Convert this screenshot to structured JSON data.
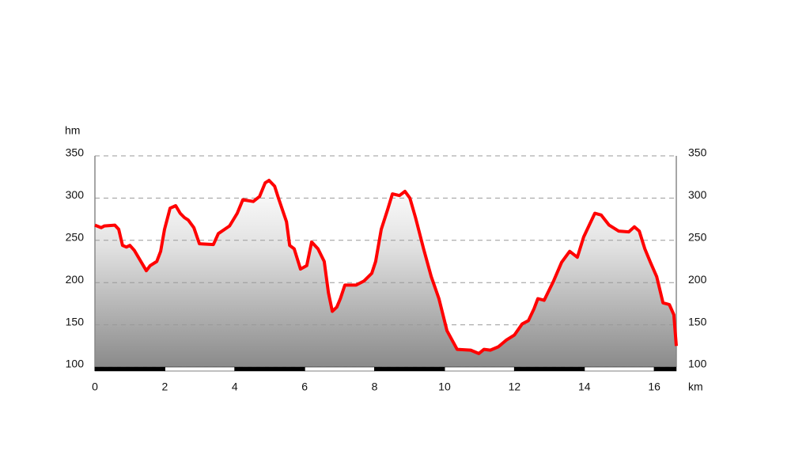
{
  "chart_data": {
    "type": "area",
    "y_label": "hm",
    "x_label": "km",
    "x": [
      0,
      0.18,
      0.27,
      0.57,
      0.68,
      0.79,
      0.9,
      1.0,
      1.13,
      1.47,
      1.58,
      1.77,
      1.88,
      1.99,
      2.15,
      2.31,
      2.44,
      2.56,
      2.67,
      2.83,
      2.99,
      3.39,
      3.53,
      3.85,
      4.07,
      4.23,
      4.53,
      4.71,
      4.87,
      4.98,
      5.14,
      5.25,
      5.48,
      5.57,
      5.7,
      5.88,
      6.06,
      6.2,
      6.38,
      6.56,
      6.68,
      6.79,
      6.92,
      7.02,
      7.15,
      7.47,
      7.7,
      7.92,
      8.03,
      8.19,
      8.37,
      8.51,
      8.71,
      8.87,
      9.01,
      9.17,
      9.4,
      9.62,
      9.84,
      10.07,
      10.36,
      10.75,
      10.98,
      11.13,
      11.31,
      11.54,
      11.77,
      12.0,
      12.22,
      12.4,
      12.56,
      12.67,
      12.85,
      13.12,
      13.35,
      13.58,
      13.8,
      13.98,
      14.14,
      14.3,
      14.48,
      14.71,
      14.98,
      15.27,
      15.43,
      15.57,
      15.73,
      15.89,
      16.07,
      16.25,
      16.43,
      16.56,
      16.63
    ],
    "values": [
      268,
      265,
      267,
      268,
      263,
      244,
      242,
      244,
      238,
      214,
      220,
      225,
      237,
      263,
      288,
      291,
      282,
      277,
      274,
      265,
      246,
      245,
      258,
      267,
      282,
      298,
      296,
      302,
      318,
      321,
      314,
      300,
      272,
      244,
      240,
      216,
      220,
      248,
      240,
      225,
      188,
      166,
      171,
      181,
      197,
      197,
      202,
      211,
      225,
      263,
      286,
      305,
      303,
      308,
      300,
      277,
      240,
      207,
      181,
      143,
      121,
      120,
      116,
      121,
      120,
      124,
      132,
      138,
      151,
      155,
      169,
      181,
      179,
      202,
      224,
      237,
      230,
      254,
      268,
      282,
      280,
      268,
      261,
      260,
      266,
      261,
      240,
      224,
      207,
      176,
      174,
      162,
      125
    ],
    "color": "#ff0000",
    "xlim": [
      0,
      16.63
    ],
    "xticks": [
      0,
      2,
      4,
      6,
      8,
      10,
      12,
      14,
      16
    ],
    "ylim": [
      100,
      350
    ],
    "yticks": [
      100,
      150,
      200,
      250,
      300,
      350
    ],
    "y2lim": [
      100,
      350
    ],
    "y2ticks": [
      100,
      150,
      200,
      250,
      300,
      350
    ],
    "grid": true
  }
}
